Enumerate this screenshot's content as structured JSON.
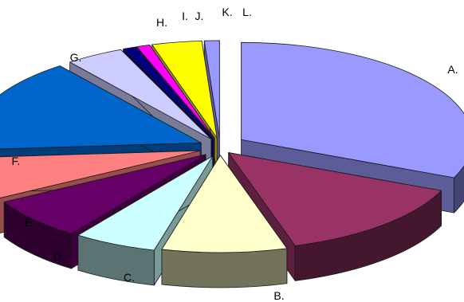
{
  "chart_data": {
    "type": "pie",
    "variant": "3d-exploded",
    "legend": "none",
    "slices": [
      {
        "label": "A.",
        "value": 27.0,
        "color": "#9999ff"
      },
      {
        "label": "B.",
        "value": 12.0,
        "color": "#993366"
      },
      {
        "label": "C.",
        "value": 7.5,
        "color": "#ffffcc"
      },
      {
        "label": "D.",
        "value": 5.0,
        "color": "#ccffff"
      },
      {
        "label": "E.",
        "value": 6.0,
        "color": "#660066"
      },
      {
        "label": "F.",
        "value": 6.0,
        "color": "#ff8080"
      },
      {
        "label": "G.",
        "value": 13.5,
        "color": "#0066cc"
      },
      {
        "label": "H.",
        "value": 3.5,
        "color": "#ccccff"
      },
      {
        "label": "I.",
        "value": 0.8,
        "color": "#000080"
      },
      {
        "label": "J.",
        "value": 0.8,
        "color": "#ff00ff"
      },
      {
        "label": "K.",
        "value": 3.0,
        "color": "#ffff00"
      },
      {
        "label": "L.",
        "value": 0.9,
        "color": "#9999ff"
      }
    ]
  }
}
